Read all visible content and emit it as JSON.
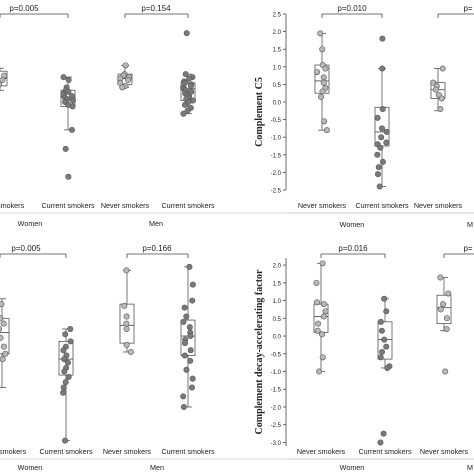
{
  "figure": {
    "colors": {
      "never_point": "#b8b8b8",
      "current_point": "#7a7a7a",
      "point_edge": "#555555",
      "box": "#555555",
      "axis": "#444444",
      "text": "#222222"
    }
  },
  "chart_data": [
    {
      "type": "box",
      "ylabel": "",
      "ylim": [
        -3.0,
        3.0
      ],
      "yticks": [],
      "groups": [
        "Women",
        "Men"
      ],
      "categories": [
        "Never smokers",
        "Current smokers",
        "Never smokers",
        "Current smokers"
      ],
      "pvalues": [
        "p=0.005",
        "p=0.154"
      ],
      "series": [
        {
          "group": "Women",
          "category": "Never smokers",
          "box": {
            "q1": 0.55,
            "median": 0.8,
            "q3": 1.05,
            "whisker_low": 0.4,
            "whisker_high": 1.15
          },
          "points": [
            0.9,
            0.75,
            1.1,
            0.6
          ]
        },
        {
          "group": "Women",
          "category": "Current smokers",
          "box": {
            "q1": -0.15,
            "median": 0.15,
            "q3": 0.4,
            "whisker_low": -0.95,
            "whisker_high": 0.85
          },
          "points": [
            0.85,
            0.75,
            0.5,
            0.4,
            0.35,
            0.3,
            0.25,
            0.2,
            0.15,
            0.1,
            0.05,
            0.0,
            -0.1,
            -0.15,
            -0.95,
            -1.6,
            -2.55
          ]
        },
        {
          "group": "Men",
          "category": "Never smokers",
          "box": {
            "q1": 0.6,
            "median": 0.8,
            "q3": 0.95,
            "whisker_low": 0.5,
            "whisker_high": 1.25
          },
          "points": [
            1.25,
            0.95,
            0.9,
            0.85,
            0.8,
            0.75,
            0.65,
            0.55,
            0.5
          ]
        },
        {
          "group": "Men",
          "category": "Current smokers",
          "box": {
            "q1": 0.05,
            "median": 0.45,
            "q3": 0.65,
            "whisker_low": -0.4,
            "whisker_high": 0.95
          },
          "points": [
            2.35,
            0.95,
            0.85,
            0.8,
            0.7,
            0.65,
            0.6,
            0.55,
            0.5,
            0.45,
            0.4,
            0.35,
            0.3,
            0.25,
            0.2,
            0.15,
            0.1,
            0.05,
            0.0,
            -0.1,
            -0.2,
            -0.3,
            -0.4
          ]
        }
      ]
    },
    {
      "type": "box",
      "ylabel": "Complement C5",
      "ylim": [
        -2.5,
        2.5
      ],
      "yticks": [
        "2.5",
        "2.0",
        "1.5",
        "1.0",
        "0.5",
        "0.0",
        "-0.5",
        "-1.0",
        "-1.5",
        "-2.0",
        "-2.5"
      ],
      "groups": [
        "Women",
        "M"
      ],
      "categories": [
        "Never smokers",
        "Current smokers",
        "Never smokers"
      ],
      "pvalues": [
        "p=0.010",
        "p="
      ],
      "series": [
        {
          "group": "Women",
          "category": "Never smokers",
          "box": {
            "q1": 0.25,
            "median": 0.6,
            "q3": 1.05,
            "whisker_low": -0.8,
            "whisker_high": 1.95
          },
          "points": [
            1.95,
            1.5,
            1.05,
            0.95,
            0.85,
            0.7,
            0.55,
            0.4,
            0.3,
            0.15,
            -0.55,
            -0.8
          ]
        },
        {
          "group": "Women",
          "category": "Current smokers",
          "box": {
            "q1": -1.25,
            "median": -0.85,
            "q3": -0.15,
            "whisker_low": -2.4,
            "whisker_high": 0.95
          },
          "points": [
            1.8,
            0.95,
            -0.2,
            -0.45,
            -0.75,
            -0.85,
            -1.0,
            -1.15,
            -1.2,
            -1.3,
            -1.5,
            -1.7,
            -1.85,
            -2.05,
            -2.4
          ]
        },
        {
          "group": "M",
          "category": "Never smokers",
          "box": {
            "q1": 0.1,
            "median": 0.35,
            "q3": 0.55,
            "whisker_low": -0.25,
            "whisker_high": 0.95
          },
          "points": [
            0.95,
            0.55,
            0.45,
            0.35,
            0.2,
            0.1,
            -0.2
          ]
        }
      ]
    },
    {
      "type": "box",
      "ylabel": "",
      "ylim": [
        -3.0,
        2.3
      ],
      "yticks": [],
      "groups": [
        "Women",
        "Men"
      ],
      "categories": [
        "Never smokers",
        "Current smokers",
        "Never smokers",
        "Current smokers"
      ],
      "pvalues": [
        "p=0.005",
        "p=0.166"
      ],
      "series": [
        {
          "group": "Women",
          "category": "Never smokers",
          "box": {
            "q1": -0.4,
            "median": 0.2,
            "q3": 0.6,
            "whisker_low": -1.35,
            "whisker_high": 1.15
          },
          "points": [
            1.0,
            0.6,
            0.45,
            0.3,
            0.05,
            -0.2,
            -0.4,
            -0.55
          ]
        },
        {
          "group": "Women",
          "category": "Current smokers",
          "box": {
            "q1": -1.0,
            "median": -0.55,
            "q3": -0.05,
            "whisker_low": -2.85,
            "whisker_high": 0.3
          },
          "points": [
            0.3,
            0.15,
            -0.05,
            -0.2,
            -0.3,
            -0.45,
            -0.55,
            -0.65,
            -0.8,
            -0.9,
            -1.05,
            -1.2,
            -1.35,
            -1.5,
            -2.85
          ]
        },
        {
          "group": "Men",
          "category": "Never smokers",
          "box": {
            "q1": -0.1,
            "median": 0.4,
            "q3": 1.0,
            "whisker_low": -0.35,
            "whisker_high": 1.95
          },
          "points": [
            1.95,
            0.95,
            0.65,
            0.45,
            0.3,
            -0.15,
            -0.35
          ]
        },
        {
          "group": "Men",
          "category": "Current smokers",
          "box": {
            "q1": -0.45,
            "median": 0.1,
            "q3": 0.55,
            "whisker_low": -1.9,
            "whisker_high": 2.05
          },
          "points": [
            2.05,
            1.55,
            1.1,
            0.9,
            0.65,
            0.5,
            0.35,
            0.2,
            0.1,
            0.0,
            -0.1,
            -0.3,
            -0.45,
            -0.6,
            -0.85,
            -1.1,
            -1.35,
            -1.6,
            -1.9
          ]
        }
      ]
    },
    {
      "type": "box",
      "ylabel": "Complement decay-accelerating factor",
      "ylim": [
        -3.1,
        2.2
      ],
      "yticks": [
        "2.0",
        "1.5",
        "1.0",
        "0.5",
        "0.0",
        "-0.5",
        "-1.0",
        "-1.5",
        "-2.0",
        "-2.5",
        "-3.0"
      ],
      "groups": [
        "Women",
        "M"
      ],
      "categories": [
        "Never smokers",
        "Current smokers",
        "Never smokers"
      ],
      "pvalues": [
        "p=0.016",
        "p="
      ],
      "series": [
        {
          "group": "Women",
          "category": "Never smokers",
          "box": {
            "q1": 0.1,
            "median": 0.55,
            "q3": 0.9,
            "whisker_low": -1.0,
            "whisker_high": 2.05
          },
          "points": [
            2.05,
            1.5,
            0.95,
            0.9,
            0.7,
            0.55,
            0.35,
            0.15,
            0.05,
            -0.6,
            -1.0
          ]
        },
        {
          "group": "Women",
          "category": "Current smokers",
          "box": {
            "q1": -0.65,
            "median": -0.1,
            "q3": 0.4,
            "whisker_low": -0.9,
            "whisker_high": 1.05
          },
          "points": [
            1.05,
            0.7,
            0.4,
            0.15,
            -0.1,
            -0.3,
            -0.45,
            -0.6,
            -0.85,
            -0.9,
            -2.75,
            -3.0
          ]
        },
        {
          "group": "M",
          "category": "Never smokers",
          "box": {
            "q1": 0.35,
            "median": 0.8,
            "q3": 1.15,
            "whisker_low": 0.15,
            "whisker_high": 1.65
          },
          "points": [
            1.65,
            1.2,
            0.9,
            0.75,
            0.5,
            0.2,
            -1.0
          ]
        }
      ]
    }
  ]
}
